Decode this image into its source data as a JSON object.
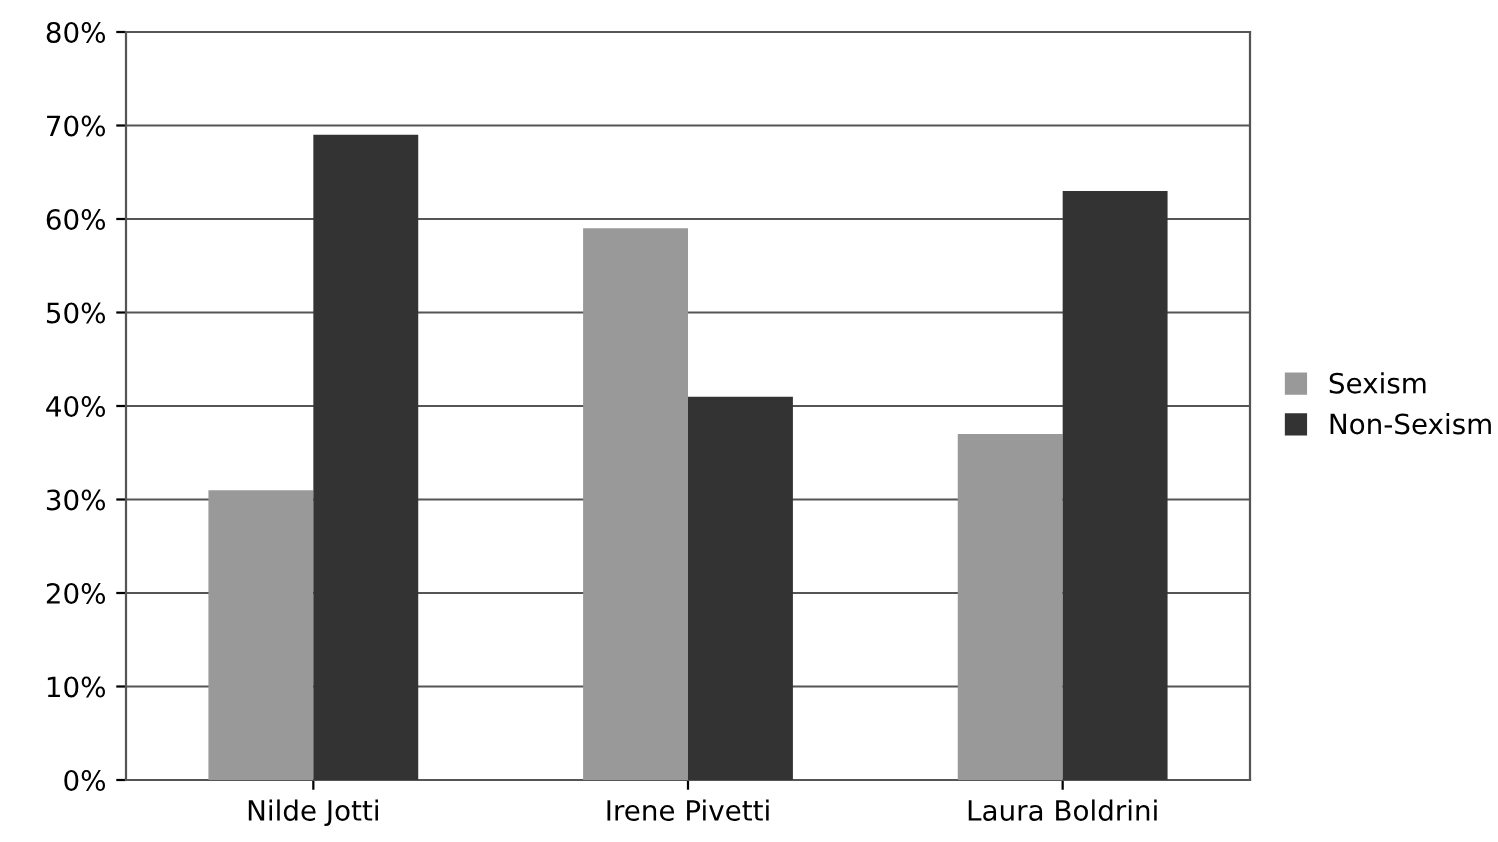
{
  "chart_data": {
    "type": "bar",
    "categories": [
      "Nilde Jotti",
      "Irene Pivetti",
      "Laura Boldrini"
    ],
    "series": [
      {
        "name": "Sexism",
        "color": "#999999",
        "values": [
          31,
          59,
          37
        ]
      },
      {
        "name": "Non-Sexism",
        "color": "#333333",
        "values": [
          69,
          41,
          63
        ]
      }
    ],
    "ylim": [
      0,
      80
    ],
    "yticks": [
      {
        "value": 0,
        "label": "0%"
      },
      {
        "value": 10,
        "label": "10%"
      },
      {
        "value": 20,
        "label": "20%"
      },
      {
        "value": 30,
        "label": "30%"
      },
      {
        "value": 40,
        "label": "40%"
      },
      {
        "value": 50,
        "label": "50%"
      },
      {
        "value": 60,
        "label": "60%"
      },
      {
        "value": 70,
        "label": "70%"
      },
      {
        "value": 80,
        "label": "80%"
      }
    ],
    "grid": "y",
    "legend": "right"
  }
}
